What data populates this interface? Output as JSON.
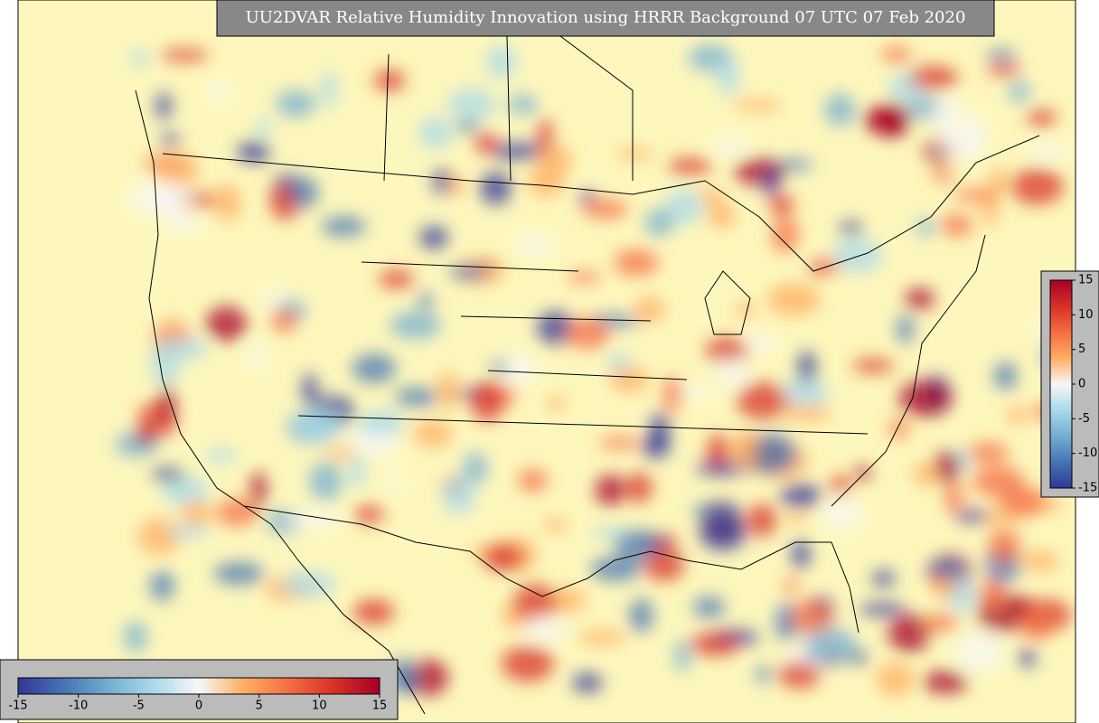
{
  "title": "UU2DVAR Relative Humidity Innovation using HRRR Background 07 UTC 07 Feb 2020",
  "colormap": [
    "#313695",
    "#4575b4",
    "#74add1",
    "#abd9e9",
    "#f7f7f7",
    "#fdae61",
    "#f46d43",
    "#d73027",
    "#a50026"
  ],
  "colorbar_horizontal": {
    "range": [
      -15,
      15
    ],
    "ticks": [
      -15,
      -10,
      -5,
      0,
      5,
      10,
      15
    ]
  },
  "colorbar_vertical": {
    "range": [
      -15,
      15
    ],
    "ticks": [
      -15,
      -10,
      -5,
      0,
      5,
      10,
      15
    ]
  }
}
